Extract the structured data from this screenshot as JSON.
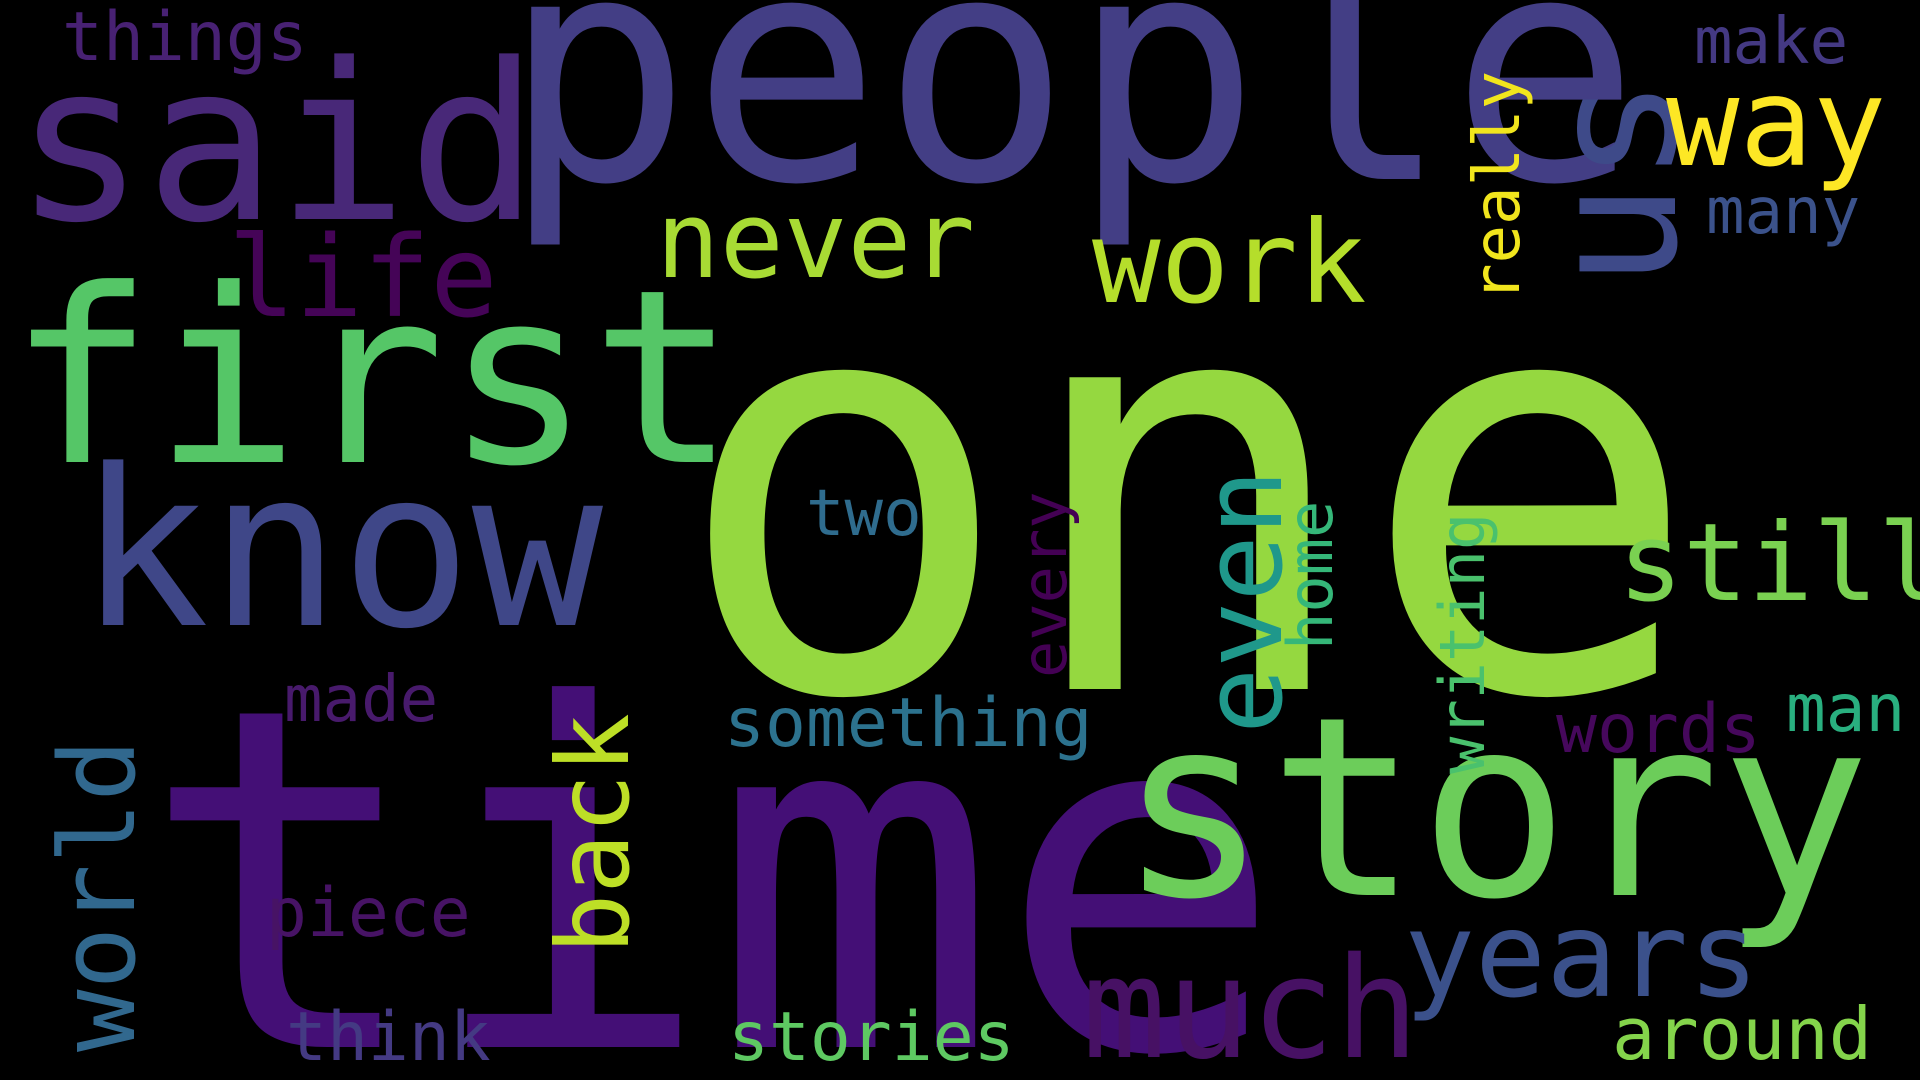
{
  "words": {
    "one": {
      "text": "one",
      "color": "#95d840"
    },
    "time": {
      "text": "time",
      "color": "#440f76"
    },
    "people": {
      "text": "people",
      "color": "#433e85"
    },
    "first": {
      "text": "first",
      "color": "#55c667"
    },
    "said": {
      "text": "said",
      "color": "#482878"
    },
    "know": {
      "text": "know",
      "color": "#3f4788"
    },
    "story": {
      "text": "story",
      "color": "#6ccd5a"
    },
    "us": {
      "text": "us",
      "color": "#3e4a89"
    },
    "way": {
      "text": "way",
      "color": "#fde725"
    },
    "much": {
      "text": "much",
      "color": "#471164"
    },
    "years": {
      "text": "years",
      "color": "#3b518b"
    },
    "never": {
      "text": "never",
      "color": "#a8db34"
    },
    "work": {
      "text": "work",
      "color": "#b5de2b"
    },
    "life": {
      "text": "life",
      "color": "#450457"
    },
    "even": {
      "text": "even",
      "color": "#1f988b"
    },
    "still": {
      "text": "still",
      "color": "#7ad151"
    },
    "back": {
      "text": "back",
      "color": "#bddf26"
    },
    "world": {
      "text": "world",
      "color": "#31688e"
    },
    "things": {
      "text": "things",
      "color": "#482173"
    },
    "make": {
      "text": "make",
      "color": "#443983"
    },
    "many": {
      "text": "many",
      "color": "#3b528b"
    },
    "really": {
      "text": "really",
      "color": "#f1e51d"
    },
    "two": {
      "text": "two",
      "color": "#2f6c8e"
    },
    "every": {
      "text": "every",
      "color": "#440154"
    },
    "home": {
      "text": "home",
      "color": "#35b779"
    },
    "writing": {
      "text": "writing",
      "color": "#4ac16d"
    },
    "made": {
      "text": "made",
      "color": "#481a6c"
    },
    "something": {
      "text": "something",
      "color": "#2c728e"
    },
    "words_w": {
      "text": "words",
      "color": "#46085c"
    },
    "man": {
      "text": "man",
      "color": "#29af7f"
    },
    "piece": {
      "text": "piece",
      "color": "#471365"
    },
    "think": {
      "text": "think",
      "color": "#443a83"
    },
    "stories": {
      "text": "stories",
      "color": "#5ec962"
    },
    "around": {
      "text": "around",
      "color": "#84d44b"
    }
  }
}
